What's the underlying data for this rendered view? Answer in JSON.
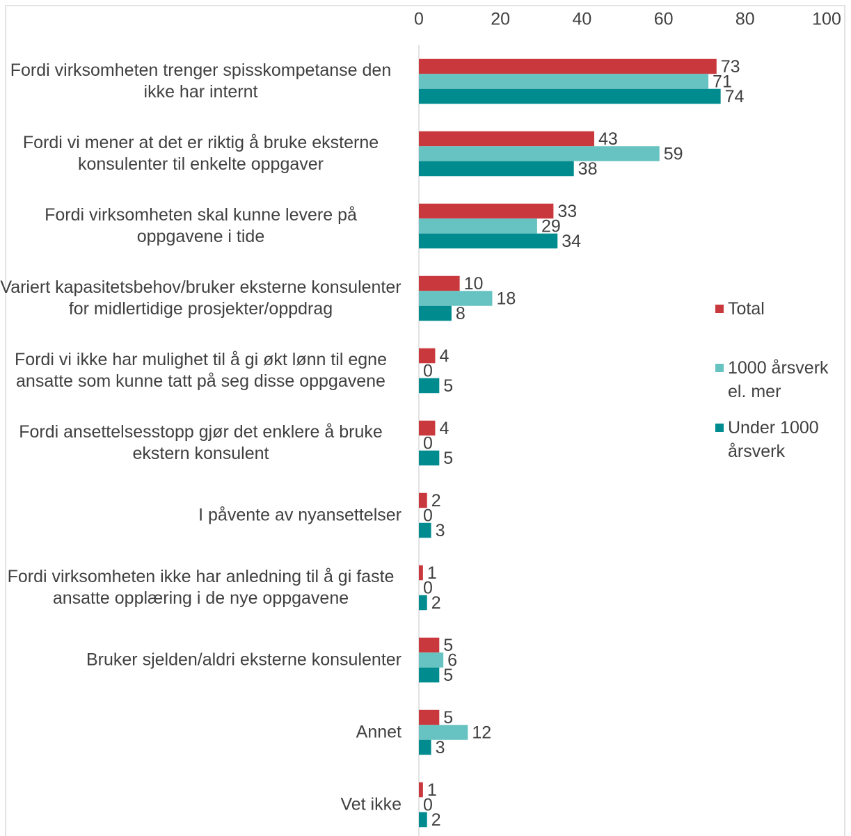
{
  "chart_data": {
    "type": "bar",
    "orientation": "horizontal",
    "categories": [
      "Fordi virksomheten trenger spisskompetanse den ikke har internt",
      "Fordi vi mener at det er riktig å bruke eksterne konsulenter til enkelte oppgaver",
      "Fordi virksomheten skal kunne levere på oppgavene i tide",
      "Variert kapasitetsbehov/bruker eksterne konsulenter for midlertidige prosjekter/oppdrag",
      "Fordi vi ikke har mulighet til å gi økt lønn til egne ansatte som kunne tatt på seg disse oppgavene",
      "Fordi ansettelsesstopp gjør det enklere å bruke ekstern konsulent",
      "I påvente av nyansettelser",
      "Fordi virksomheten ikke har anledning til å gi faste ansatte opplæring i de nye oppgavene",
      "Bruker sjelden/aldri eksterne konsulenter",
      "Annet",
      "Vet ikke"
    ],
    "series": [
      {
        "name": "Total",
        "color": "#c8383c",
        "values": [
          73,
          43,
          33,
          10,
          4,
          4,
          2,
          1,
          5,
          5,
          1
        ]
      },
      {
        "name": "1000 årsverk el. mer",
        "color": "#67c3c1",
        "values": [
          71,
          59,
          29,
          18,
          0,
          0,
          0,
          0,
          6,
          12,
          0
        ]
      },
      {
        "name": "Under 1000 årsverk",
        "color": "#008b8f",
        "values": [
          74,
          38,
          34,
          8,
          5,
          5,
          3,
          2,
          5,
          3,
          2
        ]
      }
    ],
    "xlim": [
      0,
      100
    ],
    "xticks": [
      0,
      20,
      40,
      60,
      80,
      100
    ],
    "legend": "right"
  }
}
